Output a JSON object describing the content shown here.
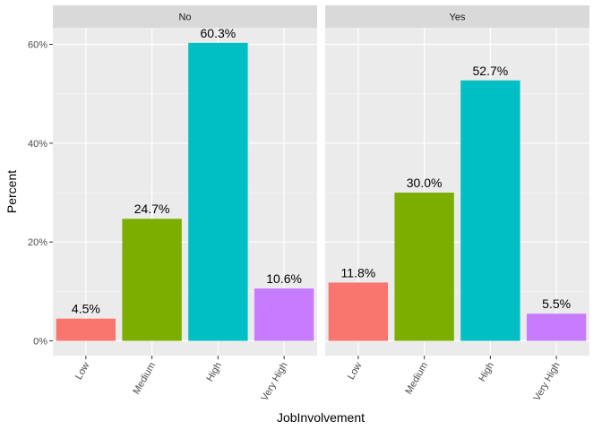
{
  "chart_data": {
    "type": "bar",
    "xlabel": "JobInvolvement",
    "ylabel": "Percent",
    "categories": [
      "Low",
      "Medium",
      "High",
      "Very High"
    ],
    "category_colors": [
      "#F8766D",
      "#7CAE00",
      "#00BFC4",
      "#C77CFF"
    ],
    "ylim": [
      0,
      62
    ],
    "yticks": [
      0,
      20,
      40,
      60
    ],
    "ytick_labels": [
      "0%",
      "20%",
      "40%",
      "60%"
    ],
    "grid": true,
    "panels": [
      {
        "facet": "No",
        "values": [
          4.5,
          24.7,
          60.3,
          10.6
        ],
        "labels": [
          "4.5%",
          "24.7%",
          "60.3%",
          "10.6%"
        ]
      },
      {
        "facet": "Yes",
        "values": [
          11.8,
          30.0,
          52.7,
          5.5
        ],
        "labels": [
          "11.8%",
          "30.0%",
          "52.7%",
          "5.5%"
        ]
      }
    ]
  }
}
